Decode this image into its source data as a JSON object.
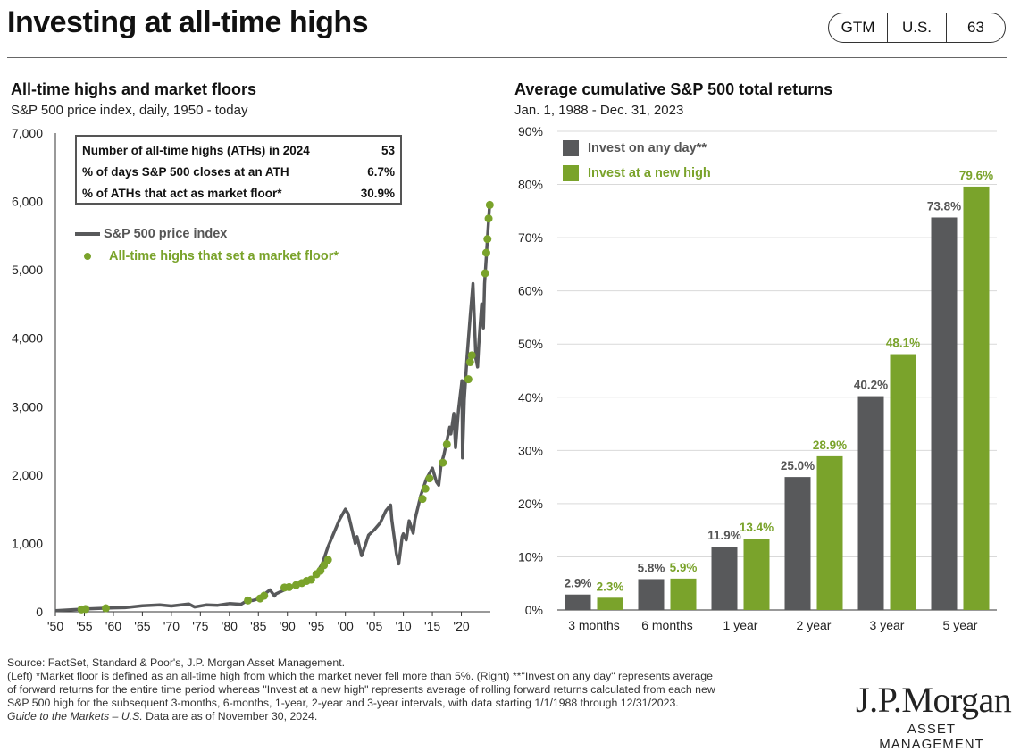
{
  "header": {
    "title": "Investing at all-time highs",
    "badge": [
      "GTM",
      "U.S.",
      "63"
    ]
  },
  "left_panel": {
    "title": "All-time highs and market floors",
    "subtitle": "S&P 500 price index, daily, 1950 - today",
    "stats_box": [
      {
        "label": "Number of all-time highs (ATHs) in 2024",
        "value": "53"
      },
      {
        "label": "% of days S&P 500 closes at an ATH",
        "value": "6.7%"
      },
      {
        "label": "% of ATHs that act as market floor*",
        "value": "30.9%"
      }
    ],
    "legend": {
      "price": "S&P 500 price index",
      "floors": "All-time highs that set a market floor*"
    }
  },
  "right_panel": {
    "title": "Average cumulative S&P 500 total returns",
    "subtitle": "Jan. 1, 1988 - Dec. 31, 2023"
  },
  "footer": {
    "line1": "Source: FactSet, Standard & Poor's, J.P. Morgan Asset Management.",
    "line2": "(Left) *Market floor is defined as an all-time high from which the market never fell more than 5%. (Right) **\"Invest on any day\" represents average",
    "line3": "of forward returns for the entire time period whereas \"Invest at a new high\" represents average of rolling forward returns calculated from each new",
    "line4": "S&P 500 high for the subsequent 3-months, 6-months, 1-year, 2-year and 3-year intervals, with data starting 1/1/1988  through 12/31/2023.",
    "line5_italic": "Guide to the Markets – U.S.",
    "line5_rest": " Data are as of November 30, 2024."
  },
  "logo": {
    "name": "J.P.Morgan",
    "sub": "ASSET MANAGEMENT"
  },
  "colors": {
    "gray": "#58595b",
    "green": "#7aa32b",
    "grid": "#d9d9d9"
  },
  "chart_data": [
    {
      "type": "line",
      "title": "All-time highs and market floors",
      "subtitle": "S&P 500 price index, daily, 1950 - today",
      "xlim": [
        1950,
        2025
      ],
      "ylim": [
        0,
        7000
      ],
      "x_ticks": [
        1950,
        1955,
        1960,
        1965,
        1970,
        1975,
        1980,
        1985,
        1990,
        1995,
        2000,
        2005,
        2010,
        2015,
        2020
      ],
      "x_tick_labels": [
        "'50",
        "'55",
        "'60",
        "'65",
        "'70",
        "'75",
        "'80",
        "'85",
        "'90",
        "'95",
        "'00",
        "'05",
        "'10",
        "'15",
        "'20"
      ],
      "y_ticks": [
        0,
        1000,
        2000,
        3000,
        4000,
        5000,
        6000,
        7000
      ],
      "y_tick_labels": [
        "0",
        "1,000",
        "2,000",
        "3,000",
        "4,000",
        "5,000",
        "6,000",
        "7,000"
      ],
      "series": [
        {
          "name": "S&P 500 price index",
          "points": [
            [
              1950,
              17
            ],
            [
              1955,
              40
            ],
            [
              1960,
              58
            ],
            [
              1962,
              60
            ],
            [
              1965,
              88
            ],
            [
              1968,
              100
            ],
            [
              1970,
              85
            ],
            [
              1973,
              115
            ],
            [
              1974,
              70
            ],
            [
              1976,
              100
            ],
            [
              1978,
              95
            ],
            [
              1980,
              120
            ],
            [
              1982,
              110
            ],
            [
              1983,
              160
            ],
            [
              1984,
              165
            ],
            [
              1985,
              190
            ],
            [
              1987,
              320
            ],
            [
              1987.8,
              230
            ],
            [
              1988,
              260
            ],
            [
              1990,
              340
            ],
            [
              1991,
              380
            ],
            [
              1993,
              460
            ],
            [
              1994,
              460
            ],
            [
              1995,
              560
            ],
            [
              1996,
              700
            ],
            [
              1997,
              950
            ],
            [
              1998,
              1150
            ],
            [
              1999,
              1350
            ],
            [
              2000,
              1500
            ],
            [
              2000.5,
              1430
            ],
            [
              2001,
              1250
            ],
            [
              2001.7,
              1000
            ],
            [
              2002,
              1100
            ],
            [
              2002.8,
              820
            ],
            [
              2003,
              860
            ],
            [
              2004,
              1120
            ],
            [
              2005,
              1200
            ],
            [
              2006,
              1300
            ],
            [
              2007,
              1480
            ],
            [
              2007.8,
              1560
            ],
            [
              2008,
              1350
            ],
            [
              2008.8,
              850
            ],
            [
              2009.2,
              700
            ],
            [
              2009.8,
              1100
            ],
            [
              2010,
              1140
            ],
            [
              2010.5,
              1050
            ],
            [
              2011,
              1330
            ],
            [
              2011.7,
              1150
            ],
            [
              2012,
              1350
            ],
            [
              2013,
              1700
            ],
            [
              2014,
              1950
            ],
            [
              2015,
              2100
            ],
            [
              2015.7,
              1900
            ],
            [
              2016.1,
              1850
            ],
            [
              2016.5,
              2150
            ],
            [
              2017,
              2300
            ],
            [
              2018,
              2700
            ],
            [
              2018.2,
              2600
            ],
            [
              2018.7,
              2900
            ],
            [
              2018.99,
              2400
            ],
            [
              2019.5,
              2950
            ],
            [
              2020.1,
              3380
            ],
            [
              2020.2,
              2250
            ],
            [
              2020.5,
              3100
            ],
            [
              2021,
              3750
            ],
            [
              2021.5,
              4300
            ],
            [
              2022,
              4800
            ],
            [
              2022.5,
              3700
            ],
            [
              2022.8,
              3580
            ],
            [
              2023,
              3900
            ],
            [
              2023.5,
              4500
            ],
            [
              2023.8,
              4150
            ],
            [
              2024,
              4800
            ],
            [
              2024.3,
              5200
            ],
            [
              2024.6,
              5600
            ],
            [
              2024.9,
              6000
            ]
          ]
        },
        {
          "name": "All-time highs that set a market floor*",
          "points": [
            [
              1954.5,
              35
            ],
            [
              1955.2,
              40
            ],
            [
              1958.7,
              52
            ],
            [
              1983.2,
              165
            ],
            [
              1985.3,
              195
            ],
            [
              1986,
              235
            ],
            [
              1989.5,
              355
            ],
            [
              1990.3,
              360
            ],
            [
              1991.5,
              390
            ],
            [
              1992.5,
              420
            ],
            [
              1993.3,
              450
            ],
            [
              1994.1,
              470
            ],
            [
              1995,
              550
            ],
            [
              1995.7,
              600
            ],
            [
              1996.3,
              680
            ],
            [
              1997,
              760
            ],
            [
              2013.3,
              1650
            ],
            [
              2013.8,
              1800
            ],
            [
              2014.5,
              1950
            ],
            [
              2016.8,
              2180
            ],
            [
              2017.5,
              2450
            ],
            [
              2021.2,
              3400
            ],
            [
              2021.5,
              3650
            ],
            [
              2021.8,
              3750
            ],
            [
              2024.1,
              4950
            ],
            [
              2024.3,
              5250
            ],
            [
              2024.5,
              5450
            ],
            [
              2024.7,
              5750
            ],
            [
              2024.9,
              5950
            ]
          ]
        }
      ],
      "annotations": [
        {
          "label": "Number of all-time highs (ATHs) in 2024",
          "value": "53"
        },
        {
          "label": "% of days S&P 500 closes at an ATH",
          "value": "6.7%"
        },
        {
          "label": "% of ATHs that act as market floor*",
          "value": "30.9%"
        }
      ]
    },
    {
      "type": "bar",
      "title": "Average cumulative S&P 500 total returns",
      "subtitle": "Jan. 1, 1988 - Dec. 31, 2023",
      "categories": [
        "3 months",
        "6 months",
        "1 year",
        "2 year",
        "3 year",
        "5 year"
      ],
      "ylim": [
        0,
        90
      ],
      "y_ticks": [
        0,
        10,
        20,
        30,
        40,
        50,
        60,
        70,
        80,
        90
      ],
      "y_tick_labels": [
        "0%",
        "10%",
        "20%",
        "30%",
        "40%",
        "50%",
        "60%",
        "70%",
        "80%",
        "90%"
      ],
      "legend": "top-left",
      "grid": true,
      "series": [
        {
          "name": "Invest on any day**",
          "values": [
            2.9,
            5.8,
            11.9,
            25.0,
            40.2,
            73.8
          ],
          "labels": [
            "2.9%",
            "5.8%",
            "11.9%",
            "25.0%",
            "40.2%",
            "73.8%"
          ]
        },
        {
          "name": "Invest at a new high",
          "values": [
            2.3,
            5.9,
            13.4,
            28.9,
            48.1,
            79.6
          ],
          "labels": [
            "2.3%",
            "5.9%",
            "13.4%",
            "28.9%",
            "48.1%",
            "79.6%"
          ]
        }
      ]
    }
  ]
}
